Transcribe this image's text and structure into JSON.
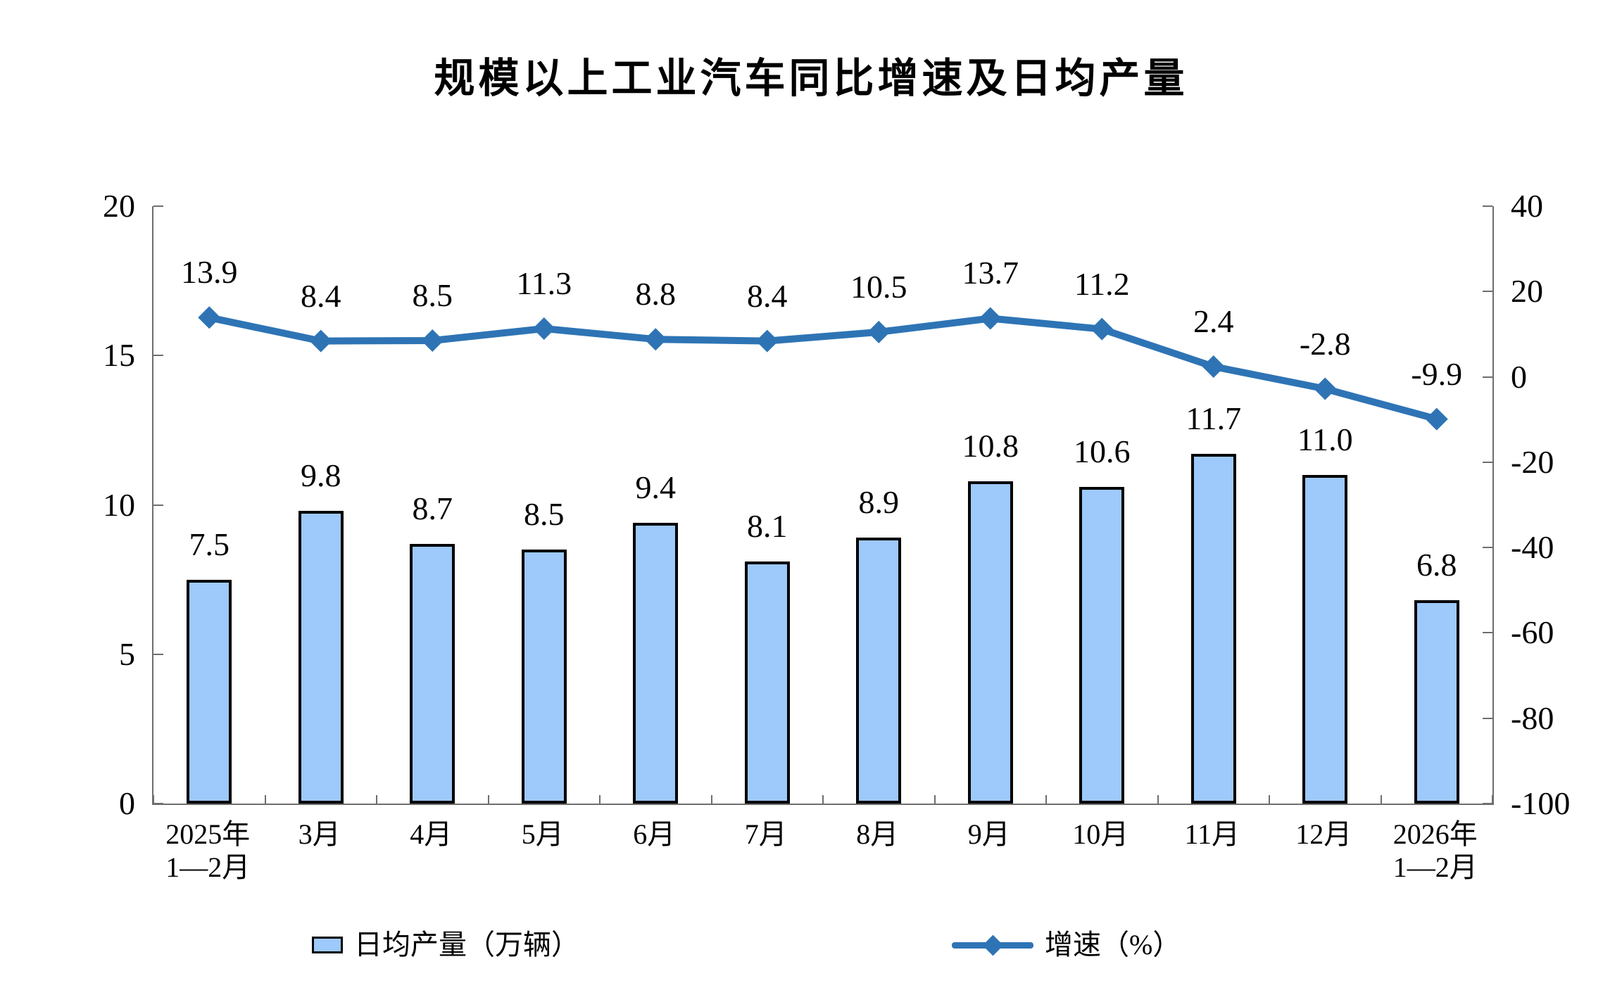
{
  "title": "规模以上工业汽车同比增速及日均产量",
  "chart_data": {
    "type": "bar+line combo",
    "grid": "off",
    "legend_position": "bottom",
    "categories": [
      "2025年 1—2月",
      "3月",
      "4月",
      "5月",
      "6月",
      "7月",
      "8月",
      "9月",
      "10月",
      "11月",
      "12月",
      "2026年 1—2月"
    ],
    "category_lines": [
      [
        "2025年",
        "1—2月"
      ],
      [
        "3月"
      ],
      [
        "4月"
      ],
      [
        "5月"
      ],
      [
        "6月"
      ],
      [
        "7月"
      ],
      [
        "8月"
      ],
      [
        "9月"
      ],
      [
        "10月"
      ],
      [
        "11月"
      ],
      [
        "12月"
      ],
      [
        "2026年",
        "1—2月"
      ]
    ],
    "series": [
      {
        "name": "日均产量（万辆）",
        "type": "bar",
        "axis": "left",
        "values": [
          7.5,
          9.8,
          8.7,
          8.5,
          9.4,
          8.1,
          8.9,
          10.8,
          10.6,
          11.7,
          11.0,
          6.8
        ],
        "labels": [
          "7.5",
          "9.8",
          "8.7",
          "8.5",
          "9.4",
          "8.1",
          "8.9",
          "10.8",
          "10.6",
          "11.7",
          "11.0",
          "6.8"
        ]
      },
      {
        "name": "增速（%）",
        "type": "line",
        "axis": "right",
        "values": [
          13.9,
          8.4,
          8.5,
          11.3,
          8.8,
          8.4,
          10.5,
          13.7,
          11.2,
          2.4,
          -2.8,
          -9.9
        ],
        "labels": [
          "13.9",
          "8.4",
          "8.5",
          "11.3",
          "8.8",
          "8.4",
          "10.5",
          "13.7",
          "11.2",
          "2.4",
          "-2.8",
          "-9.9"
        ]
      }
    ],
    "left_axis": {
      "min": 0,
      "max": 20,
      "step": 5,
      "tick_labels": [
        "0",
        "5",
        "10",
        "15",
        "20"
      ]
    },
    "right_axis": {
      "min": -100,
      "max": 40,
      "step": 20,
      "tick_labels": [
        "40",
        "20",
        "0",
        "-20",
        "-40",
        "-60",
        "-80",
        "-100"
      ]
    },
    "colors": {
      "bar_fill": "#9DC9FB",
      "bar_border": "#000000",
      "line": "#2E74B5",
      "axis": "#6e6e6e",
      "text": "#000000",
      "background": "#FFFFFF"
    }
  },
  "legend": {
    "items": [
      {
        "label": "日均产量（万辆）",
        "swatch": "bar"
      },
      {
        "label": "增速（%）",
        "swatch": "line-diamond"
      }
    ]
  }
}
